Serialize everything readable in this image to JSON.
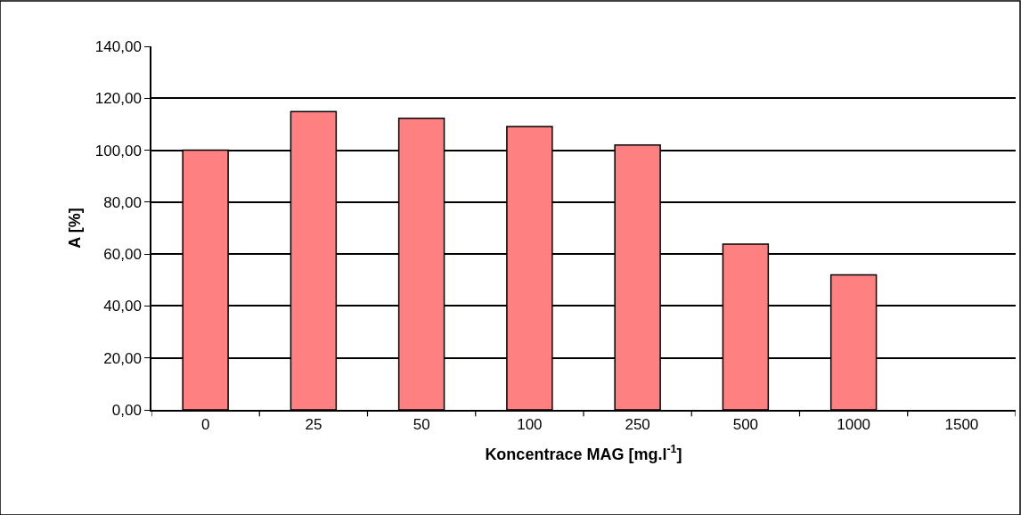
{
  "chart_data": {
    "type": "bar",
    "xlabel": "Koncentrace MAG [mg.l$^{-1}$]",
    "ylabel": "A [%]",
    "categories": [
      "0",
      "25",
      "50",
      "100",
      "250",
      "500",
      "1000",
      "1500"
    ],
    "values": [
      100,
      114.9,
      112.3,
      109.1,
      102.0,
      63.8,
      52.0,
      null
    ],
    "color": "#ff8080",
    "ylim": [
      0,
      140
    ],
    "yticks": [
      {
        "value": 0,
        "label": "0,00"
      },
      {
        "value": 20,
        "label": "20,00"
      },
      {
        "value": 40,
        "label": "40,00"
      },
      {
        "value": 60,
        "label": "60,00"
      },
      {
        "value": 80,
        "label": "80,00"
      },
      {
        "value": 100,
        "label": "100,00"
      },
      {
        "value": 120,
        "label": "120,00"
      },
      {
        "value": 140,
        "label": "140,00"
      }
    ],
    "grid": "y"
  }
}
